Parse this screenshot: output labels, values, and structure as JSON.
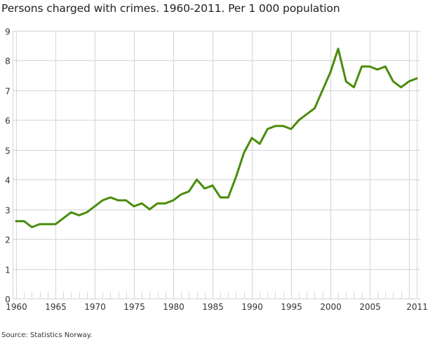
{
  "title": "Persons charged with crimes. 1960-2011. Per 1 000 population",
  "source": "Source: Statistics Norway.",
  "colors": {
    "line": "#4a8c0c",
    "grid": "#d9d9d9",
    "text": "#333333"
  },
  "chart_data": {
    "type": "line",
    "title": "Persons charged with crimes. 1960-2011. Per 1 000 population",
    "xlabel": "",
    "ylabel": "",
    "ylim": [
      0,
      9
    ],
    "xlim": [
      1960,
      2011
    ],
    "grid": true,
    "legend": null,
    "x_tick_labels": [
      "1960",
      "1965",
      "1970",
      "1975",
      "1980",
      "1985",
      "1990",
      "1995",
      "2000",
      "2005",
      "2011"
    ],
    "y_tick_labels": [
      "0",
      "1",
      "2",
      "3",
      "4",
      "5",
      "6",
      "7",
      "8",
      "9"
    ],
    "x": [
      1960,
      1961,
      1962,
      1963,
      1964,
      1965,
      1966,
      1967,
      1968,
      1969,
      1970,
      1971,
      1972,
      1973,
      1974,
      1975,
      1976,
      1977,
      1978,
      1979,
      1980,
      1981,
      1982,
      1983,
      1984,
      1985,
      1986,
      1987,
      1988,
      1989,
      1990,
      1991,
      1992,
      1993,
      1994,
      1995,
      1996,
      1997,
      1998,
      1999,
      2000,
      2001,
      2002,
      2003,
      2004,
      2005,
      2006,
      2007,
      2008,
      2009,
      2010,
      2011
    ],
    "series": [
      {
        "name": "Persons charged per 1 000 population",
        "values": [
          2.6,
          2.6,
          2.4,
          2.5,
          2.5,
          2.5,
          2.7,
          2.9,
          2.8,
          2.9,
          3.1,
          3.3,
          3.4,
          3.3,
          3.3,
          3.1,
          3.2,
          3.0,
          3.2,
          3.2,
          3.3,
          3.5,
          3.6,
          4.0,
          3.7,
          3.8,
          3.4,
          3.4,
          4.1,
          4.9,
          5.4,
          5.2,
          5.7,
          5.8,
          5.8,
          5.7,
          6.0,
          6.2,
          6.4,
          7.0,
          7.6,
          8.4,
          7.3,
          7.1,
          7.8,
          7.8,
          7.7,
          7.8,
          7.3,
          7.1,
          7.3,
          7.4
        ]
      }
    ],
    "source": "Source: Statistics Norway."
  }
}
